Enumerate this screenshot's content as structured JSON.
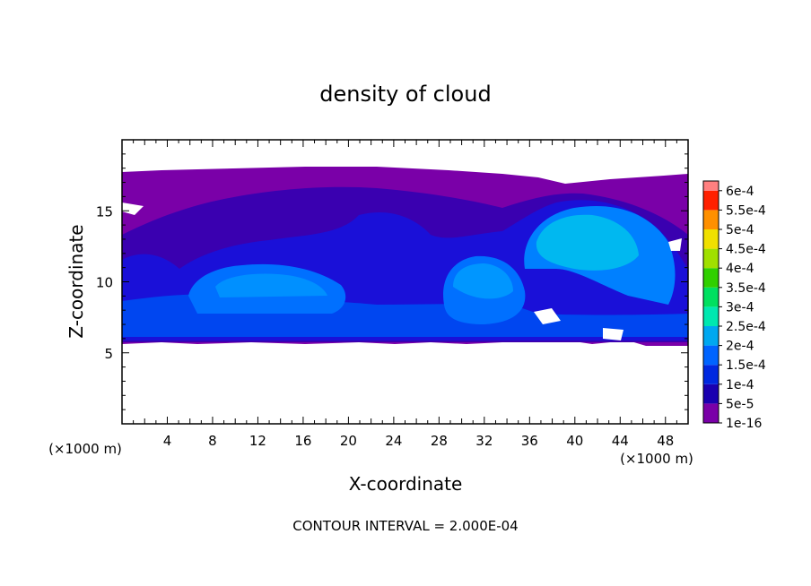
{
  "chart_data": {
    "type": "heatmap",
    "title": "density of cloud",
    "xlabel": "X-coordinate",
    "ylabel": "Z-coordinate",
    "x_unit_label": "(×1000 m)",
    "x_unit_label_right": "(×1000 m)",
    "xlim": [
      0,
      50
    ],
    "ylim": [
      0,
      20
    ],
    "x_ticks": [
      4,
      8,
      12,
      16,
      20,
      24,
      28,
      32,
      36,
      40,
      44,
      48
    ],
    "y_ticks": [
      5,
      10,
      15
    ],
    "contour_interval_text": "CONTOUR INTERVAL = 2.000E-04",
    "legend_placement": "right",
    "colorbar": [
      {
        "label": "1e-16",
        "color": "#7a00a8"
      },
      {
        "label": "5e-5",
        "color": "#1a00b0"
      },
      {
        "label": "1e-4",
        "color": "#0028e0"
      },
      {
        "label": "1.5e-4",
        "color": "#0064ff"
      },
      {
        "label": "2e-4",
        "color": "#00a8f0"
      },
      {
        "label": "2.5e-4",
        "color": "#00e8b0"
      },
      {
        "label": "3e-4",
        "color": "#00e060"
      },
      {
        "label": "3.5e-4",
        "color": "#30d000"
      },
      {
        "label": "4e-4",
        "color": "#a0e000"
      },
      {
        "label": "4.5e-4",
        "color": "#f0e000"
      },
      {
        "label": "5e-4",
        "color": "#ff9000"
      },
      {
        "label": "5.5e-4",
        "color": "#ff2000"
      },
      {
        "label": "6e-4",
        "color": "#ff8080"
      }
    ],
    "cloud_layer_z": [
      5.5,
      17.8
    ]
  }
}
